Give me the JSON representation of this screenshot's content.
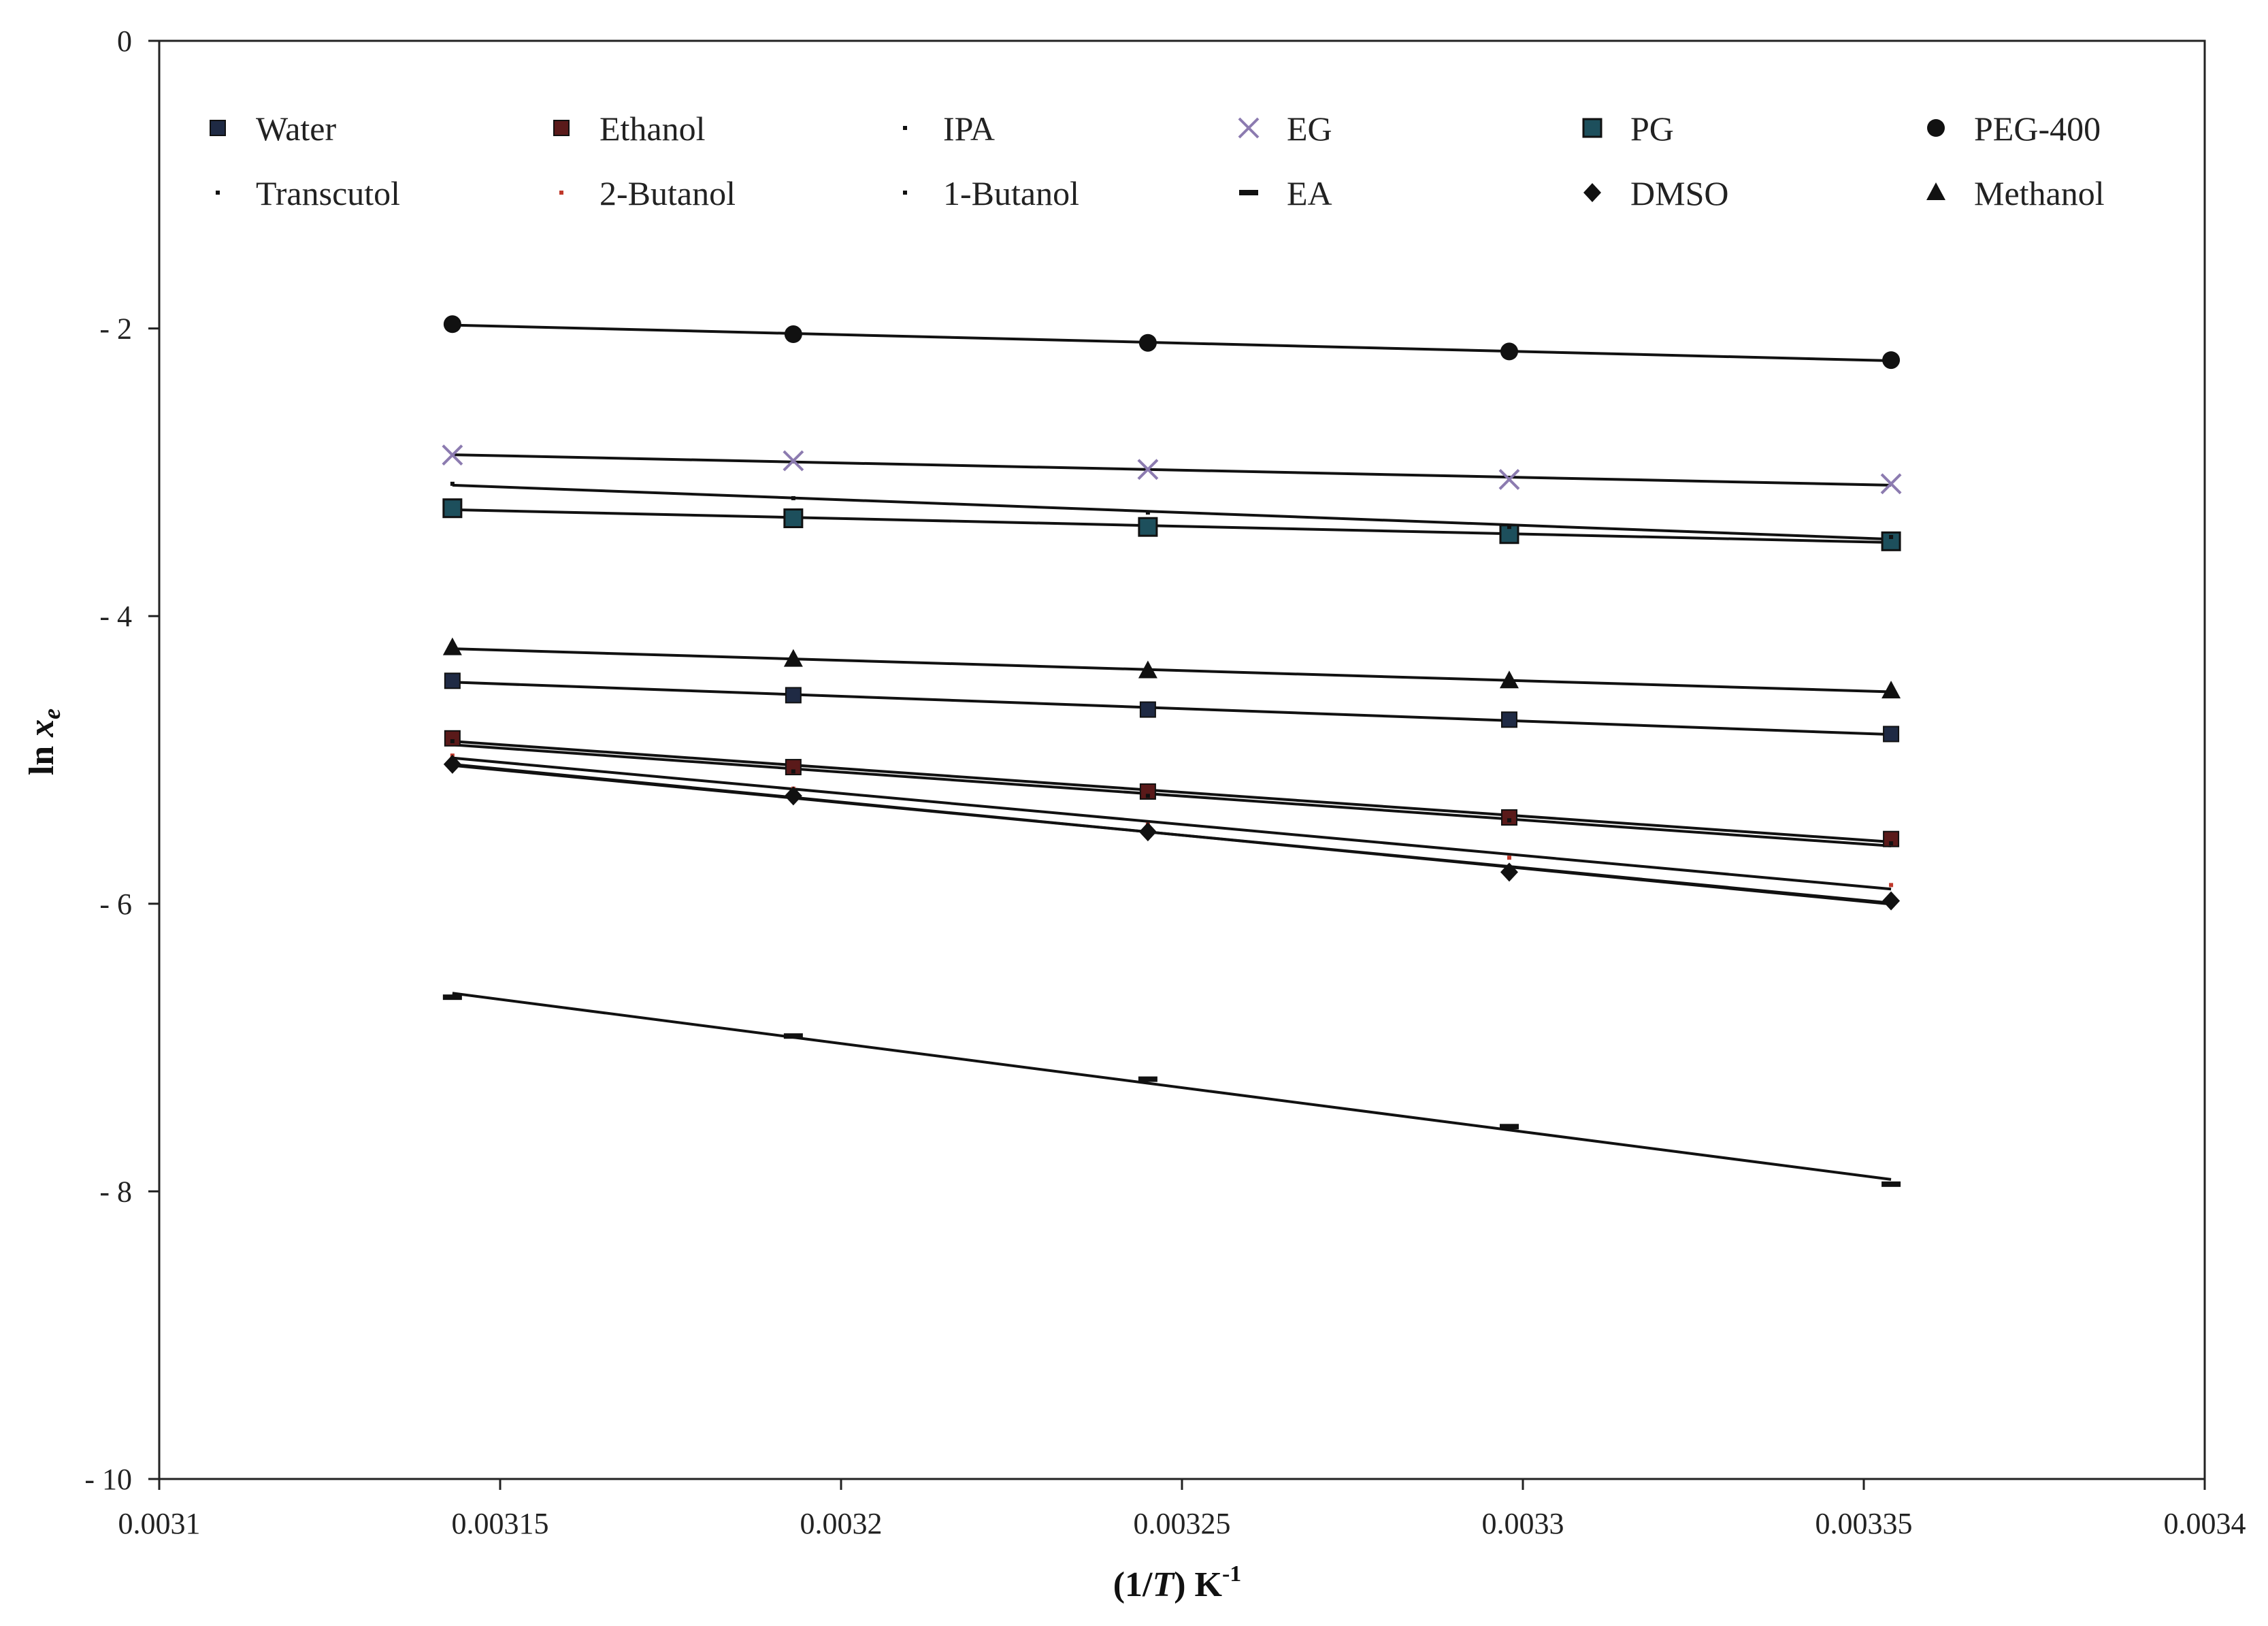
{
  "chart_data": {
    "type": "scatter",
    "title": "",
    "xlabel": {
      "main": "(1/",
      "italic": "T",
      "unit": ") K",
      "sup": "-1"
    },
    "ylabel": {
      "main": "ln ",
      "italic": "x",
      "sub": "e"
    },
    "xlim": [
      0.0031,
      0.0034
    ],
    "ylim": [
      -10,
      0
    ],
    "x_ticks": [
      0.0031,
      0.00315,
      0.0032,
      0.00325,
      0.0033,
      0.00335,
      0.0034
    ],
    "x_tick_labels": [
      "0.0031",
      "0.00315",
      "0.0032",
      "0.00325",
      "0.0033",
      "0.00335",
      "0.0034"
    ],
    "y_ticks": [
      0,
      -2,
      -4,
      -6,
      -8,
      -10
    ],
    "y_tick_labels": [
      "0",
      "- 2",
      "- 4",
      "- 6",
      "- 8",
      "- 10"
    ],
    "grid": false,
    "legend_position": "top",
    "trendlines": true,
    "x": [
      0.003143,
      0.003193,
      0.003245,
      0.003298,
      0.003354
    ],
    "series": [
      {
        "name": "Water",
        "marker": "square",
        "color": "#1f2a44",
        "values": [
          -4.45,
          -4.55,
          -4.65,
          -4.72,
          -4.82
        ]
      },
      {
        "name": "Ethanol",
        "marker": "square",
        "color": "#5a1a1a",
        "values": [
          -4.85,
          -5.05,
          -5.22,
          -5.4,
          -5.55
        ]
      },
      {
        "name": "IPA",
        "marker": "dot",
        "color": "#111111",
        "values": [
          -4.87,
          -5.08,
          -5.25,
          -5.42,
          -5.58
        ]
      },
      {
        "name": "EG",
        "marker": "x",
        "color": "#8c7bb0",
        "values": [
          -2.88,
          -2.92,
          -2.98,
          -3.05,
          -3.08
        ]
      },
      {
        "name": "PG",
        "marker": "square-teal",
        "color": "#1d4f5c",
        "values": [
          -3.25,
          -3.32,
          -3.38,
          -3.43,
          -3.48
        ]
      },
      {
        "name": "PEG-400",
        "marker": "circle",
        "color": "#111111",
        "values": [
          -1.97,
          -2.04,
          -2.1,
          -2.16,
          -2.22
        ]
      },
      {
        "name": "Transcutol",
        "marker": "dot",
        "color": "#111111",
        "values": [
          -3.08,
          -3.18,
          -3.28,
          -3.38,
          -3.45
        ]
      },
      {
        "name": "2-Butanol",
        "marker": "dot",
        "color": "#c0392b",
        "values": [
          -4.97,
          -5.2,
          -5.45,
          -5.68,
          -5.87
        ]
      },
      {
        "name": "1-Butanol",
        "marker": "dot",
        "color": "#111111",
        "values": [
          -5.03,
          -5.26,
          -5.52,
          -5.75,
          -5.98
        ]
      },
      {
        "name": "EA",
        "marker": "dash",
        "color": "#111111",
        "values": [
          -6.65,
          -6.92,
          -7.22,
          -7.55,
          -7.95
        ]
      },
      {
        "name": "DMSO",
        "marker": "diamond",
        "color": "#111111",
        "values": [
          -5.03,
          -5.25,
          -5.5,
          -5.78,
          -5.98
        ]
      },
      {
        "name": "Methanol",
        "marker": "triangle",
        "color": "#111111",
        "values": [
          -4.22,
          -4.3,
          -4.38,
          -4.45,
          -4.52
        ]
      }
    ]
  }
}
